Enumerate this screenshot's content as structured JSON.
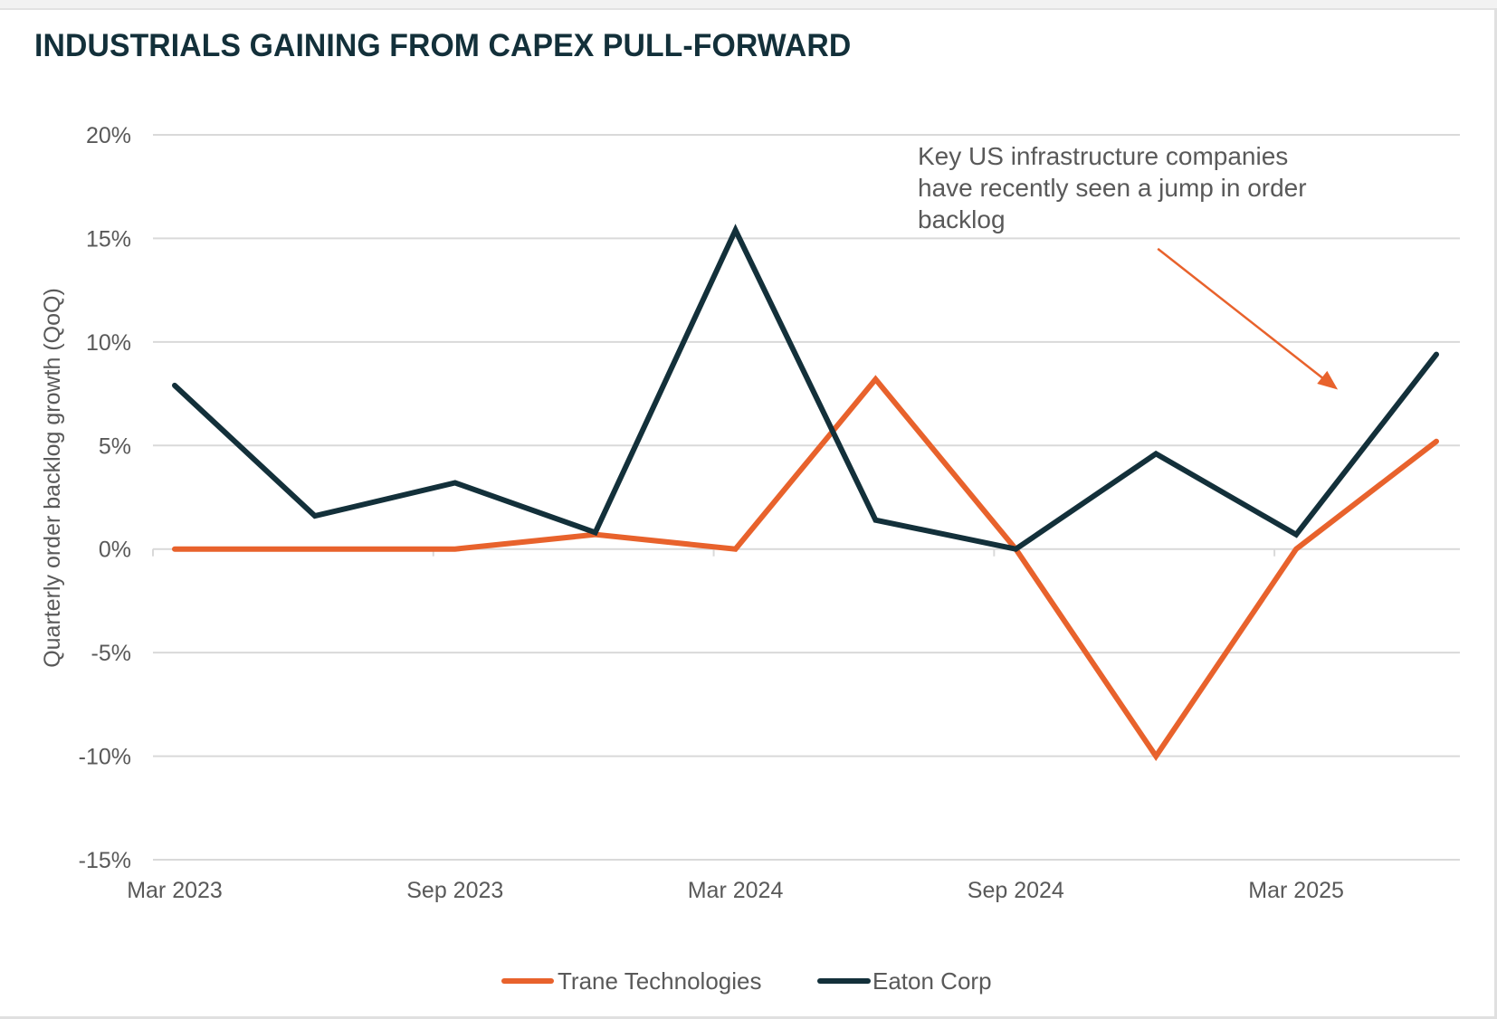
{
  "title": "INDUSTRIALS GAINING FROM CAPEX PULL-FORWARD",
  "colors": {
    "title": "#13303a",
    "trane": "#e8622c",
    "eaton": "#13303a",
    "grid": "#d9d9d9",
    "text": "#595959",
    "annotation_arrow": "#e8622c"
  },
  "chart_data": {
    "type": "line",
    "title": "INDUSTRIALS GAINING FROM CAPEX PULL-FORWARD",
    "xlabel": "",
    "ylabel": "Quarterly order backlog growth (QoQ)",
    "x": [
      "Mar 2023",
      "Jun 2023",
      "Sep 2023",
      "Dec 2023",
      "Mar 2024",
      "Jun 2024",
      "Sep 2024",
      "Dec 2024",
      "Mar 2025",
      "Jun 2025"
    ],
    "x_tick_labels": [
      "Mar 2023",
      "Sep 2023",
      "Mar 2024",
      "Sep 2024",
      "Mar 2025"
    ],
    "y_ticks": [
      20,
      15,
      10,
      5,
      0,
      -5,
      -10,
      -15
    ],
    "y_tick_labels": [
      "20%",
      "15%",
      "10%",
      "5%",
      "0%",
      "-5%",
      "-10%",
      "-15%"
    ],
    "ylim": [
      -15,
      20
    ],
    "y_unit": "%",
    "grid": true,
    "legend_position": "bottom",
    "series": [
      {
        "name": "Trane Technologies",
        "color": "#e8622c",
        "values": [
          0.0,
          0.0,
          0.0,
          0.7,
          0.0,
          8.2,
          0.0,
          -10.0,
          0.0,
          5.2
        ]
      },
      {
        "name": "Eaton Corp",
        "color": "#13303a",
        "values": [
          7.9,
          1.6,
          3.2,
          0.8,
          15.4,
          1.4,
          0.0,
          4.6,
          0.7,
          9.4
        ]
      }
    ],
    "annotations": [
      {
        "text_lines": [
          "Key US infrastructure companies",
          "have recently seen a jump in order",
          "backlog"
        ],
        "arrow_from": {
          "x": "Dec 2024",
          "y": 14.5
        },
        "arrow_to": {
          "x": "Mar 2025",
          "y": 7.7
        }
      }
    ]
  }
}
